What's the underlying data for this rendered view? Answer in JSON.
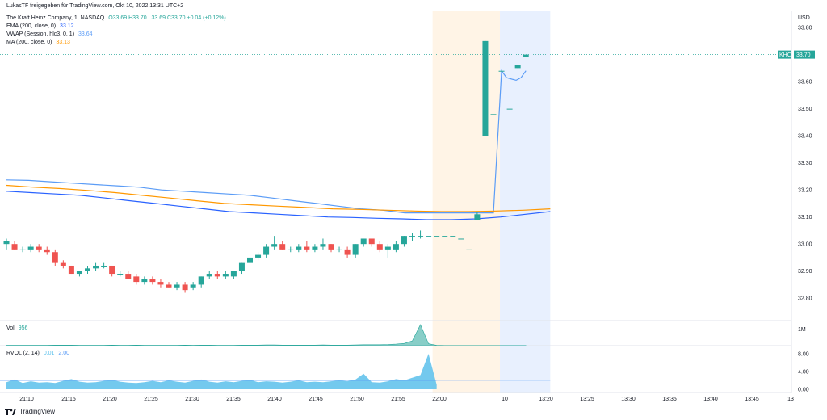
{
  "header": {
    "publisher": "LukasTF freigegeben für TradingView.com, Okt 10, 2022 13:31 UTC+2",
    "symbol_line": "The Kraft Heinz Company, 1, NASDAQ",
    "ohlc": "O33.69  H33.70  L33.69  C33.70  +0.04 (+0.12%)",
    "ema": {
      "label": "EMA (200, close, 0)",
      "value": "33.12"
    },
    "vwap": {
      "label": "VWAP (Session, hlc3, 0, 1)",
      "value": "33.64"
    },
    "ma": {
      "label": "MA (200, close, 0)",
      "value": "33.13"
    }
  },
  "colors": {
    "up": "#26a69a",
    "down": "#ef5350",
    "ema": "#2962ff",
    "vwap": "#5b9cf6",
    "ma": "#ff9800",
    "premarket_shade": "#fff4e6",
    "session_shade": "#e8f0fe",
    "volume": "#26a69a",
    "rvol": "#5bc0eb"
  },
  "volume_panel": {
    "label": "Vol",
    "value": "956",
    "axis_label": "1M"
  },
  "rvol_panel": {
    "label": "RVOL (2, 14)",
    "value1": "0.01",
    "value2": "2.00",
    "ticks": [
      "8.00",
      "4.00",
      "0.00"
    ]
  },
  "footer": {
    "brand": "TradingView"
  },
  "chart_data": {
    "type": "candlestick",
    "y_axis_label": "USD",
    "y_ticks": [
      33.8,
      33.7,
      33.6,
      33.5,
      33.4,
      33.3,
      33.2,
      33.1,
      33.0,
      32.9,
      32.8
    ],
    "ylim": [
      32.72,
      33.86
    ],
    "last_price": {
      "symbol": "KHC",
      "value": "33.70"
    },
    "x_ticks": [
      "21:10",
      "21:15",
      "21:20",
      "21:25",
      "21:30",
      "21:35",
      "21:40",
      "21:45",
      "21:50",
      "21:55",
      "22:00",
      "10",
      "13:20",
      "13:25",
      "13:30",
      "13:35",
      "13:40",
      "13:45",
      "13"
    ],
    "candles": [
      {
        "o": 33.0,
        "h": 33.02,
        "l": 32.98,
        "c": 33.01
      },
      {
        "o": 33.0,
        "h": 33.01,
        "l": 32.98,
        "c": 32.98
      },
      {
        "o": 32.98,
        "h": 32.99,
        "l": 32.97,
        "c": 32.98
      },
      {
        "o": 32.98,
        "h": 33.0,
        "l": 32.97,
        "c": 32.99
      },
      {
        "o": 32.99,
        "h": 33.0,
        "l": 32.97,
        "c": 32.98
      },
      {
        "o": 32.98,
        "h": 32.99,
        "l": 32.96,
        "c": 32.97
      },
      {
        "o": 32.97,
        "h": 32.98,
        "l": 32.92,
        "c": 32.93
      },
      {
        "o": 32.93,
        "h": 32.94,
        "l": 32.91,
        "c": 32.92
      },
      {
        "o": 32.92,
        "h": 32.92,
        "l": 32.89,
        "c": 32.89
      },
      {
        "o": 32.89,
        "h": 32.9,
        "l": 32.88,
        "c": 32.9
      },
      {
        "o": 32.9,
        "h": 32.92,
        "l": 32.89,
        "c": 32.91
      },
      {
        "o": 32.91,
        "h": 32.93,
        "l": 32.9,
        "c": 32.92
      },
      {
        "o": 32.92,
        "h": 32.93,
        "l": 32.91,
        "c": 32.92
      },
      {
        "o": 32.92,
        "h": 32.92,
        "l": 32.88,
        "c": 32.89
      },
      {
        "o": 32.89,
        "h": 32.9,
        "l": 32.88,
        "c": 32.89
      },
      {
        "o": 32.89,
        "h": 32.9,
        "l": 32.87,
        "c": 32.87
      },
      {
        "o": 32.88,
        "h": 32.89,
        "l": 32.85,
        "c": 32.86
      },
      {
        "o": 32.86,
        "h": 32.88,
        "l": 32.85,
        "c": 32.87
      },
      {
        "o": 32.87,
        "h": 32.88,
        "l": 32.85,
        "c": 32.86
      },
      {
        "o": 32.86,
        "h": 32.87,
        "l": 32.84,
        "c": 32.85
      },
      {
        "o": 32.85,
        "h": 32.86,
        "l": 32.84,
        "c": 32.84
      },
      {
        "o": 32.84,
        "h": 32.86,
        "l": 32.83,
        "c": 32.85
      },
      {
        "o": 32.85,
        "h": 32.86,
        "l": 32.82,
        "c": 32.83
      },
      {
        "o": 32.84,
        "h": 32.86,
        "l": 32.83,
        "c": 32.85
      },
      {
        "o": 32.85,
        "h": 32.88,
        "l": 32.84,
        "c": 32.88
      },
      {
        "o": 32.88,
        "h": 32.9,
        "l": 32.87,
        "c": 32.89
      },
      {
        "o": 32.89,
        "h": 32.9,
        "l": 32.87,
        "c": 32.88
      },
      {
        "o": 32.88,
        "h": 32.9,
        "l": 32.87,
        "c": 32.89
      },
      {
        "o": 32.88,
        "h": 32.9,
        "l": 32.87,
        "c": 32.9
      },
      {
        "o": 32.9,
        "h": 32.93,
        "l": 32.89,
        "c": 32.93
      },
      {
        "o": 32.93,
        "h": 32.96,
        "l": 32.92,
        "c": 32.95
      },
      {
        "o": 32.95,
        "h": 32.97,
        "l": 32.94,
        "c": 32.96
      },
      {
        "o": 32.96,
        "h": 33.0,
        "l": 32.95,
        "c": 32.99
      },
      {
        "o": 32.99,
        "h": 33.03,
        "l": 32.98,
        "c": 33.0
      },
      {
        "o": 33.0,
        "h": 33.01,
        "l": 32.98,
        "c": 32.98
      },
      {
        "o": 32.98,
        "h": 32.99,
        "l": 32.97,
        "c": 32.98
      },
      {
        "o": 32.98,
        "h": 33.0,
        "l": 32.97,
        "c": 32.99
      },
      {
        "o": 32.99,
        "h": 33.01,
        "l": 32.97,
        "c": 32.98
      },
      {
        "o": 32.98,
        "h": 33.0,
        "l": 32.97,
        "c": 32.99
      },
      {
        "o": 32.99,
        "h": 33.02,
        "l": 32.98,
        "c": 33.0
      },
      {
        "o": 33.0,
        "h": 33.0,
        "l": 32.97,
        "c": 32.98
      },
      {
        "o": 32.98,
        "h": 32.99,
        "l": 32.97,
        "c": 32.98
      },
      {
        "o": 32.98,
        "h": 32.99,
        "l": 32.95,
        "c": 32.96
      },
      {
        "o": 32.96,
        "h": 33.0,
        "l": 32.95,
        "c": 33.0
      },
      {
        "o": 33.0,
        "h": 33.02,
        "l": 32.99,
        "c": 33.02
      },
      {
        "o": 33.02,
        "h": 33.02,
        "l": 32.99,
        "c": 33.0
      },
      {
        "o": 33.0,
        "h": 33.01,
        "l": 32.97,
        "c": 32.98
      },
      {
        "o": 32.98,
        "h": 33.0,
        "l": 32.95,
        "c": 32.99
      },
      {
        "o": 32.98,
        "h": 33.01,
        "l": 32.97,
        "c": 33.0
      },
      {
        "o": 33.0,
        "h": 33.03,
        "l": 32.99,
        "c": 33.03
      },
      {
        "o": 33.03,
        "h": 33.04,
        "l": 33.01,
        "c": 33.03
      },
      {
        "o": 33.03,
        "h": 33.05,
        "l": 33.02,
        "c": 33.03
      },
      {
        "o": 33.03,
        "h": 33.03,
        "l": 33.03,
        "c": 33.03
      },
      {
        "o": 33.03,
        "h": 33.03,
        "l": 33.03,
        "c": 33.03
      },
      {
        "o": 33.03,
        "h": 33.03,
        "l": 33.03,
        "c": 33.03
      },
      {
        "o": 33.03,
        "h": 33.03,
        "l": 33.03,
        "c": 33.03
      },
      {
        "o": 33.02,
        "h": 33.02,
        "l": 33.02,
        "c": 33.02
      },
      {
        "o": 32.98,
        "h": 32.98,
        "l": 32.98,
        "c": 32.98
      },
      {
        "o": 33.09,
        "h": 33.12,
        "l": 33.09,
        "c": 33.11
      },
      {
        "o": 33.4,
        "h": 33.75,
        "l": 33.4,
        "c": 33.75
      },
      {
        "o": 33.48,
        "h": 33.48,
        "l": 33.48,
        "c": 33.48
      },
      {
        "o": 33.64,
        "h": 33.64,
        "l": 33.64,
        "c": 33.64
      },
      {
        "o": 33.5,
        "h": 33.5,
        "l": 33.5,
        "c": 33.5
      },
      {
        "o": 33.65,
        "h": 33.66,
        "l": 33.65,
        "c": 33.66
      },
      {
        "o": 33.69,
        "h": 33.7,
        "l": 33.69,
        "c": 33.7
      }
    ],
    "ema_line": [
      33.195,
      33.19,
      33.185,
      33.18,
      33.17,
      33.16,
      33.15,
      33.14,
      33.13,
      33.12,
      33.115,
      33.11,
      33.105,
      33.1,
      33.098,
      33.095,
      33.093,
      33.09,
      33.09,
      33.093,
      33.1,
      33.11,
      33.12
    ],
    "ma_line": [
      33.217,
      33.21,
      33.205,
      33.198,
      33.19,
      33.18,
      33.17,
      33.16,
      33.15,
      33.145,
      33.14,
      33.135,
      33.13,
      33.128,
      33.125,
      33.122,
      33.12,
      33.12,
      33.122,
      33.125,
      33.13
    ],
    "vwap_line": [
      33.237,
      33.235,
      33.23,
      33.225,
      33.22,
      33.215,
      33.21,
      33.2,
      33.195,
      33.19,
      33.185,
      33.18,
      33.17,
      33.16,
      33.15,
      33.14,
      33.13,
      33.125,
      33.115,
      33.115,
      33.115,
      33.115,
      33.115,
      33.64,
      33.615,
      33.61,
      33.605,
      33.615,
      33.64
    ],
    "volume": [
      0.02,
      0.02,
      0.02,
      0.02,
      0.02,
      0.02,
      0.03,
      0.03,
      0.03,
      0.02,
      0.02,
      0.02,
      0.02,
      0.03,
      0.02,
      0.02,
      0.03,
      0.02,
      0.02,
      0.02,
      0.02,
      0.02,
      0.03,
      0.02,
      0.03,
      0.03,
      0.02,
      0.02,
      0.02,
      0.03,
      0.03,
      0.03,
      0.04,
      0.04,
      0.03,
      0.03,
      0.03,
      0.03,
      0.03,
      0.04,
      0.03,
      0.03,
      0.03,
      0.04,
      0.05,
      0.05,
      0.05,
      0.06,
      0.08,
      0.12,
      0.25,
      1.1,
      0.1,
      0.02,
      0.01,
      0.01,
      0.01,
      0.01,
      0.01,
      0.01,
      0.01,
      0.01,
      0.01,
      0.01,
      0.01
    ],
    "rvol": [
      1.6,
      2.2,
      1.4,
      1.8,
      1.5,
      1.6,
      1.4,
      1.9,
      2.3,
      1.7,
      1.5,
      1.6,
      1.9,
      2.1,
      1.7,
      1.5,
      1.4,
      1.6,
      1.9,
      1.6,
      2.0,
      1.7,
      1.5,
      1.9,
      2.2,
      1.7,
      1.5,
      1.8,
      1.6,
      1.9,
      2.1,
      1.6,
      1.8,
      1.7,
      1.5,
      1.7,
      2.0,
      1.6,
      1.7,
      1.6,
      1.8,
      2.0,
      1.8,
      2.2,
      3.5,
      1.6,
      1.5,
      1.8,
      2.3,
      2.0,
      2.6,
      3.2,
      8.0,
      1.0
    ],
    "rvol_ref": 2.0
  }
}
